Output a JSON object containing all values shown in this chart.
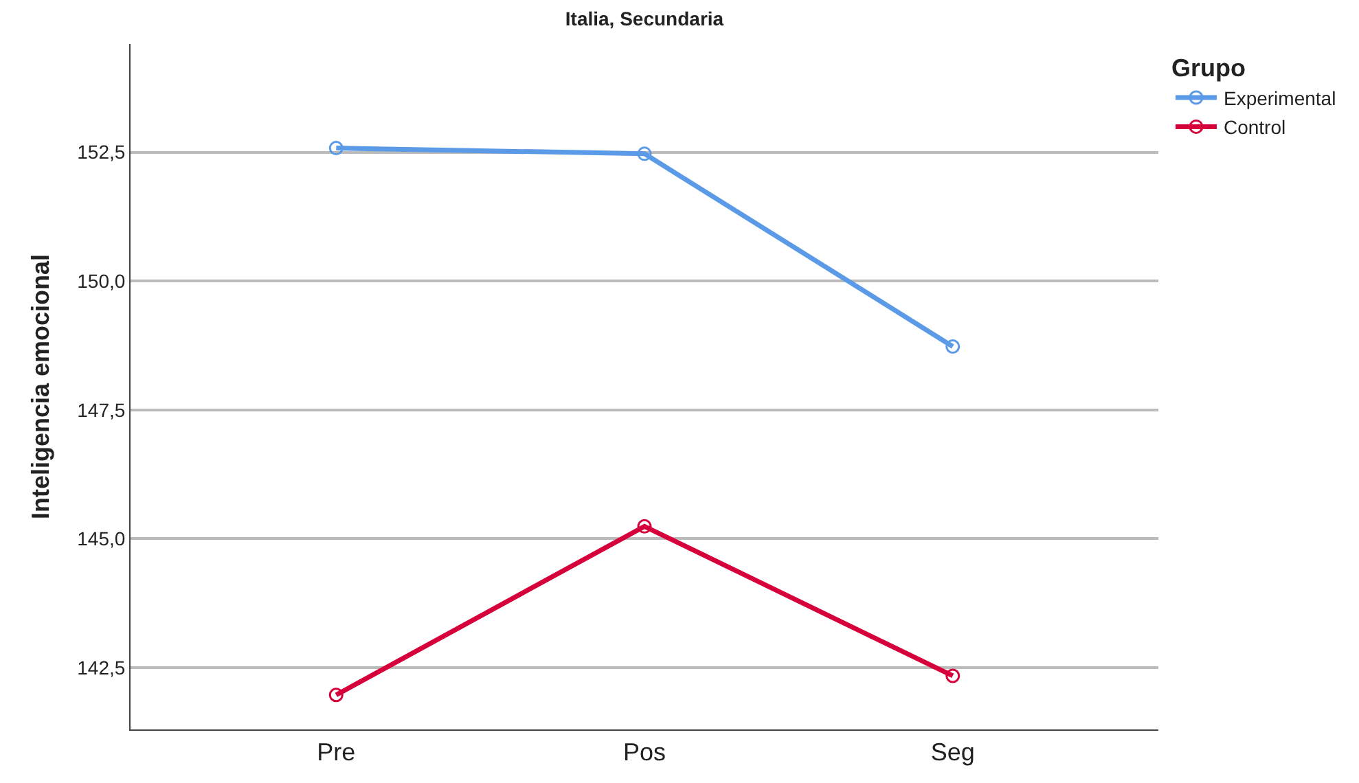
{
  "chart_data": {
    "type": "line",
    "title": "Italia, Secundaria",
    "ylabel": "Inteligencia emocional",
    "legend_title": "Grupo",
    "categories": [
      "Pre",
      "Pos",
      "Seg"
    ],
    "series": [
      {
        "name": "Experimental",
        "color": "#5b9ae6",
        "values": [
          152.58,
          152.47,
          148.73
        ]
      },
      {
        "name": "Control",
        "color": "#d6003a",
        "values": [
          141.97,
          145.24,
          142.34
        ]
      }
    ],
    "ylim": [
      141.3,
      154.6
    ],
    "yticks": [
      {
        "value": 142.5,
        "label": "142,5"
      },
      {
        "value": 145.0,
        "label": "145,0"
      },
      {
        "value": 147.5,
        "label": "147,5"
      },
      {
        "value": 150.0,
        "label": "150,0"
      },
      {
        "value": 152.5,
        "label": "152,5"
      }
    ],
    "grid": "y",
    "legend": "top right",
    "marker": "circle",
    "line_style": "solid"
  }
}
